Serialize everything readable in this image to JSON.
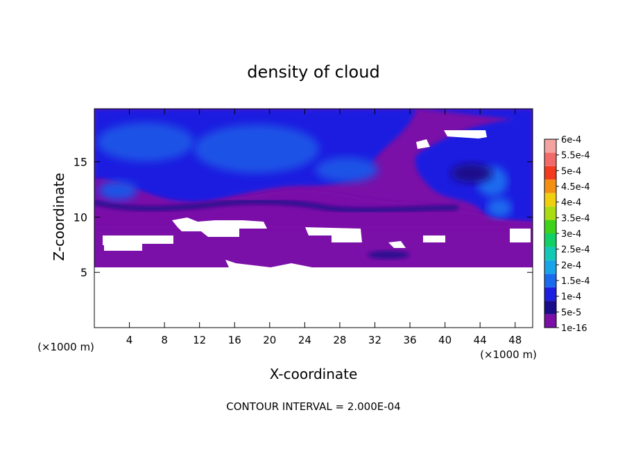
{
  "chart_data": {
    "type": "heatmap",
    "title": "density of cloud",
    "xlabel": "X-coordinate",
    "ylabel": "Z-coordinate",
    "x_unit_label": "(×1000 m)",
    "z_unit_label": "(×1000 m)",
    "xlim": [
      0,
      50
    ],
    "ylim": [
      0,
      19.8
    ],
    "x_ticks": [
      4,
      8,
      12,
      16,
      20,
      24,
      28,
      32,
      36,
      40,
      44,
      48
    ],
    "y_ticks": [
      5,
      10,
      15
    ],
    "footer": "CONTOUR INTERVAL = 2.000E-04",
    "colorbar": {
      "labels": [
        "1e-16",
        "5e-5",
        "1e-4",
        "1.5e-4",
        "2e-4",
        "2.5e-4",
        "3e-4",
        "3.5e-4",
        "4e-4",
        "4.5e-4",
        "5e-4",
        "5.5e-4",
        "6e-4"
      ],
      "colors": [
        "#7a10a8",
        "#1a0d8a",
        "#1e1ee0",
        "#1a6aee",
        "#19a3e8",
        "#13c9b6",
        "#12cf66",
        "#3fd21a",
        "#a9dc12",
        "#f0cf10",
        "#f39012",
        "#f23a1e",
        "#f06a6a",
        "#f4a3a3"
      ]
    },
    "regions": {
      "no_cloud_below_z": 5.6,
      "cloud_top_z": 19.8,
      "dense_layer_z": [
        9.8,
        19.8
      ],
      "dense_peak": {
        "x": 44,
        "z": 13.5,
        "value": 0.00012
      }
    }
  }
}
